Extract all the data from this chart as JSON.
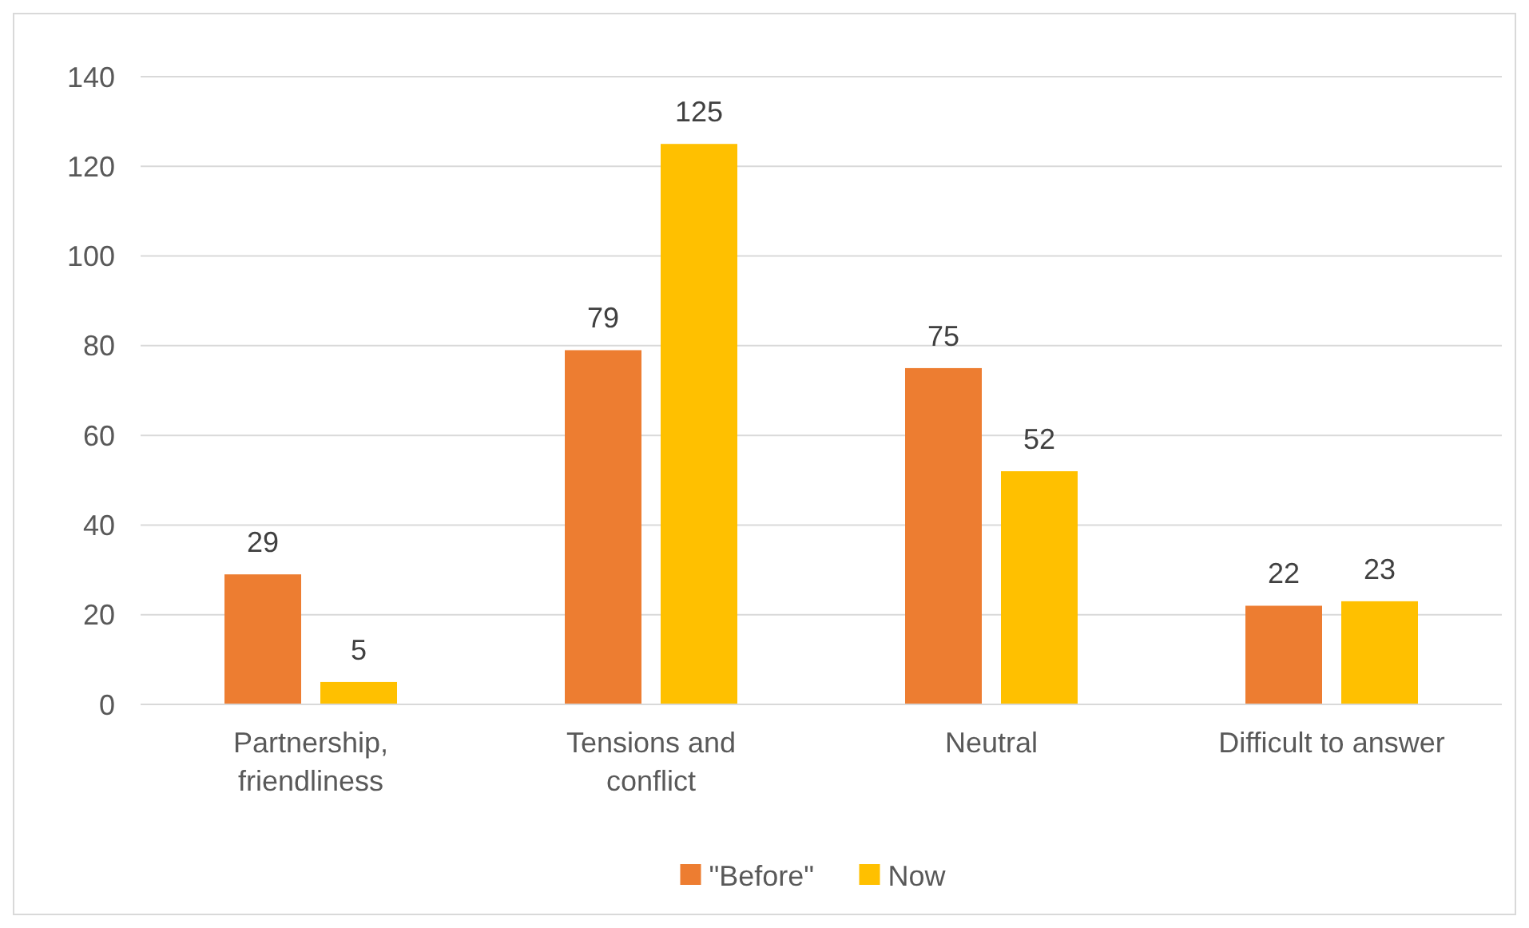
{
  "chart_data": {
    "type": "bar",
    "categories": [
      "Partnership, friendliness",
      "Tensions and conflict",
      "Neutral",
      "Difficult to answer"
    ],
    "series": [
      {
        "name": "\"Before\"",
        "color": "#ed7d31",
        "values": [
          29,
          79,
          75,
          22
        ]
      },
      {
        "name": "Now",
        "color": "#ffc000",
        "values": [
          5,
          125,
          52,
          23
        ]
      }
    ],
    "ylim": [
      0,
      140
    ],
    "yticks": [
      0,
      20,
      40,
      60,
      80,
      100,
      120,
      140
    ],
    "grid": "y",
    "legend": "bottom",
    "data_labels": true
  }
}
